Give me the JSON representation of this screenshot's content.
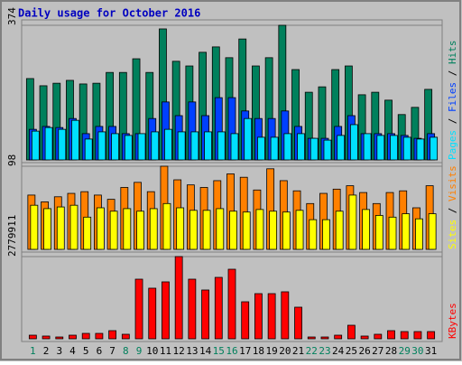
{
  "chart_data": [
    {
      "type": "bar",
      "title": "Daily usage for October 2016",
      "categories": [
        "1",
        "2",
        "3",
        "4",
        "5",
        "6",
        "7",
        "8",
        "9",
        "10",
        "11",
        "12",
        "13",
        "14",
        "15",
        "16",
        "17",
        "18",
        "19",
        "20",
        "21",
        "22",
        "23",
        "24",
        "25",
        "26",
        "27",
        "28",
        "29",
        "30",
        "31"
      ],
      "category_colors": [
        "#00805c",
        "#000000",
        "#000000",
        "#000000",
        "#000000",
        "#000000",
        "#000000",
        "#00805c",
        "#00805c",
        "#000000",
        "#000000",
        "#000000",
        "#000000",
        "#000000",
        "#00805c",
        "#00805c",
        "#000000",
        "#000000",
        "#000000",
        "#000000",
        "#000000",
        "#00805c",
        "#00805c",
        "#000000",
        "#000000",
        "#000000",
        "#000000",
        "#000000",
        "#00805c",
        "#00805c",
        "#000000"
      ],
      "ylim": [
        0,
        374
      ],
      "yticks": [
        374
      ],
      "grid": true,
      "series": [
        {
          "name": "Hits",
          "color": "#00805c",
          "values": [
            226,
            206,
            213,
            221,
            211,
            213,
            243,
            243,
            281,
            243,
            364,
            274,
            261,
            299,
            314,
            284,
            336,
            261,
            284,
            374,
            251,
            188,
            203,
            251,
            261,
            181,
            188,
            166,
            126,
            146,
            196
          ]
        },
        {
          "name": "Files",
          "color": "#0040ff",
          "values": [
            85,
            93,
            90,
            115,
            73,
            93,
            93,
            73,
            73,
            115,
            161,
            123,
            161,
            123,
            173,
            173,
            136,
            115,
            115,
            136,
            93,
            60,
            60,
            93,
            123,
            73,
            73,
            73,
            68,
            60,
            73
          ]
        },
        {
          "name": "Pages",
          "color": "#00e0ff",
          "values": [
            80,
            90,
            85,
            110,
            58,
            78,
            73,
            68,
            73,
            78,
            85,
            78,
            78,
            78,
            78,
            73,
            115,
            63,
            63,
            73,
            73,
            60,
            55,
            68,
            98,
            73,
            68,
            68,
            63,
            58,
            63
          ]
        }
      ]
    },
    {
      "type": "bar",
      "categories": [
        "1",
        "2",
        "3",
        "4",
        "5",
        "6",
        "7",
        "8",
        "9",
        "10",
        "11",
        "12",
        "13",
        "14",
        "15",
        "16",
        "17",
        "18",
        "19",
        "20",
        "21",
        "22",
        "23",
        "24",
        "25",
        "26",
        "27",
        "28",
        "29",
        "30",
        "31"
      ],
      "ylim": [
        0,
        98
      ],
      "yticks": [
        98
      ],
      "grid": true,
      "series": [
        {
          "name": "Visits",
          "color": "#ff8000",
          "values": [
            64,
            56,
            62,
            66,
            68,
            64,
            59,
            73,
            79,
            68,
            98,
            82,
            76,
            73,
            81,
            89,
            85,
            70,
            95,
            81,
            69,
            54,
            66,
            71,
            75,
            67,
            54,
            67,
            69,
            49,
            75
          ]
        },
        {
          "name": "Sites",
          "color": "#ffff00",
          "values": [
            52,
            48,
            50,
            52,
            38,
            49,
            45,
            48,
            45,
            48,
            54,
            49,
            46,
            46,
            48,
            45,
            44,
            47,
            45,
            44,
            46,
            35,
            35,
            45,
            64,
            47,
            40,
            38,
            42,
            36,
            42
          ]
        }
      ]
    },
    {
      "type": "bar",
      "categories": [
        "1",
        "2",
        "3",
        "4",
        "5",
        "6",
        "7",
        "8",
        "9",
        "10",
        "11",
        "12",
        "13",
        "14",
        "15",
        "16",
        "17",
        "18",
        "19",
        "20",
        "21",
        "22",
        "23",
        "24",
        "25",
        "26",
        "27",
        "28",
        "29",
        "30",
        "31"
      ],
      "ylim": [
        0,
        2779911
      ],
      "yticks": [
        2779911
      ],
      "grid": true,
      "series": [
        {
          "name": "KBytes",
          "color": "#ff0000",
          "values": [
            122000,
            92000,
            61000,
            122000,
            183000,
            183000,
            275000,
            153000,
            2016000,
            1711000,
            1925000,
            2779911,
            2016000,
            1650000,
            2077000,
            2352000,
            1252000,
            1527000,
            1527000,
            1589000,
            1069000,
            61000,
            61000,
            122000,
            458000,
            92000,
            153000,
            275000,
            244000,
            244000,
            244000
          ]
        }
      ]
    }
  ]
}
